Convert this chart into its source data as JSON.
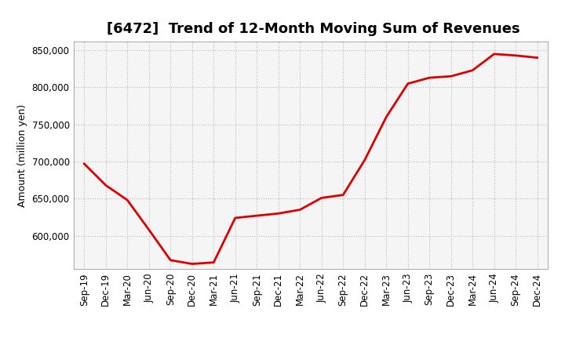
{
  "title": "[6472]  Trend of 12-Month Moving Sum of Revenues",
  "ylabel": "Amount (million yen)",
  "background_color": "#ffffff",
  "plot_background": "#f5f5f5",
  "line_color": "#dd0000",
  "line_width": 2.0,
  "x_labels": [
    "Sep-19",
    "Dec-19",
    "Mar-20",
    "Jun-20",
    "Sep-20",
    "Dec-20",
    "Mar-21",
    "Jun-21",
    "Sep-21",
    "Dec-21",
    "Mar-22",
    "Jun-22",
    "Sep-22",
    "Dec-22",
    "Mar-23",
    "Jun-23",
    "Sep-23",
    "Dec-23",
    "Mar-24",
    "Jun-24",
    "Sep-24",
    "Dec-24"
  ],
  "y_values": [
    697000,
    668000,
    648000,
    608000,
    567000,
    562000,
    564000,
    624000,
    627000,
    630000,
    635000,
    651000,
    655000,
    702000,
    760000,
    805000,
    813000,
    815000,
    823000,
    845000,
    843000,
    840000
  ],
  "ylim": [
    555000,
    862000
  ],
  "yticks": [
    600000,
    650000,
    700000,
    750000,
    800000,
    850000
  ],
  "ytick_labels": [
    "600,000",
    "650,000",
    "700,000",
    "750,000",
    "800,000",
    "850,000"
  ],
  "grid_color": "#bbbbbb",
  "title_fontsize": 13,
  "ylabel_fontsize": 9,
  "tick_fontsize": 8.5
}
